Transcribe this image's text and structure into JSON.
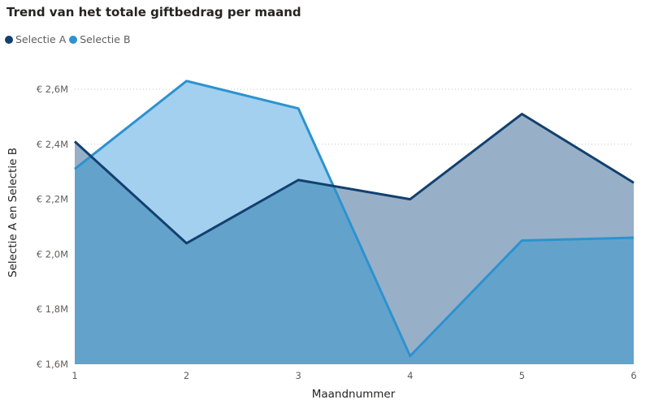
{
  "chart_data": {
    "type": "area",
    "title": "Trend van het totale giftbedrag per maand",
    "xlabel": "Maandnummer",
    "ylabel": "Selectie A en Selectie B",
    "x": [
      1,
      2,
      3,
      4,
      5,
      6
    ],
    "x_tick_labels": [
      "1",
      "2",
      "3",
      "4",
      "5",
      "6"
    ],
    "y_tick_values": [
      1.6,
      1.8,
      2.0,
      2.2,
      2.4,
      2.6
    ],
    "y_tick_labels": [
      "€ 1,6M",
      "€ 1,8M",
      "€ 2,0M",
      "€ 2,2M",
      "€ 2,4M",
      "€ 2,6M"
    ],
    "ylim": [
      1.6,
      2.7
    ],
    "grid": "horizontal dotted",
    "legend_position": "top-left",
    "series": [
      {
        "name": "Selectie A",
        "values": [
          2.41,
          2.04,
          2.27,
          2.2,
          2.51,
          2.26
        ],
        "color": "#12406F",
        "fill": "#97B0C8"
      },
      {
        "name": "Selectie B",
        "values": [
          2.31,
          2.63,
          2.53,
          1.63,
          2.05,
          2.06
        ],
        "color": "#2D92D0",
        "fill": "#A3D0EE"
      }
    ],
    "overlap_fill": "#63A3CB"
  }
}
